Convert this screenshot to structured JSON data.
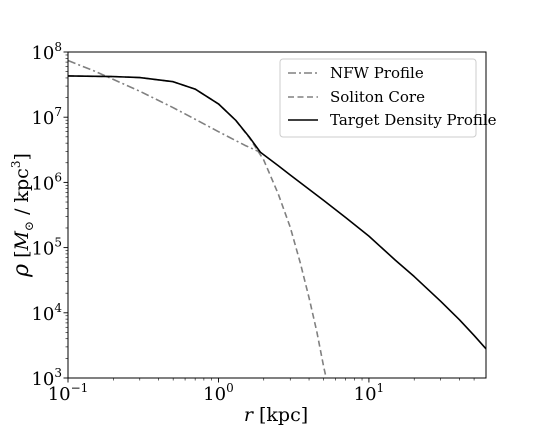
{
  "chart_data": {
    "type": "line",
    "title": "",
    "xlabel": {
      "main": "r",
      "unit": "[kpc]"
    },
    "ylabel": {
      "main": "ρ",
      "unit_open": "[",
      "unit_sym": "M",
      "unit_sub": "⊙",
      "unit_mid": " / kpc",
      "unit_sup": "3",
      "unit_close": "]"
    },
    "xscale": "log",
    "yscale": "log",
    "xlim": [
      0.1,
      60
    ],
    "ylim": [
      1000,
      100000000
    ],
    "x_ticks": [
      {
        "value": 0.1,
        "base": "10",
        "exp": "−1"
      },
      {
        "value": 1,
        "base": "10",
        "exp": "0"
      },
      {
        "value": 10,
        "base": "10",
        "exp": "1"
      }
    ],
    "y_ticks": [
      {
        "value": 1000,
        "base": "10",
        "exp": "3"
      },
      {
        "value": 10000,
        "base": "10",
        "exp": "4"
      },
      {
        "value": 100000,
        "base": "10",
        "exp": "5"
      },
      {
        "value": 1000000,
        "base": "10",
        "exp": "6"
      },
      {
        "value": 10000000,
        "base": "10",
        "exp": "7"
      },
      {
        "value": 100000000,
        "base": "10",
        "exp": "8"
      }
    ],
    "grid": false,
    "legend_position": "top-right",
    "series": [
      {
        "name": "NFW Profile",
        "color": "#808080",
        "style": "dashdot",
        "x": [
          0.1,
          0.15,
          0.2,
          0.3,
          0.5,
          0.7,
          1.0,
          1.5,
          1.9
        ],
        "y": [
          74000000,
          51000000,
          38000000,
          25000000,
          14000000,
          9300000,
          6000000,
          3700000,
          2900000
        ]
      },
      {
        "name": "Soliton Core",
        "color": "#808080",
        "style": "dashed",
        "x": [
          0.1,
          0.2,
          0.3,
          0.5,
          0.7,
          1.0,
          1.3,
          1.6,
          2.0,
          2.5,
          3.0,
          3.5,
          4.0,
          4.5,
          5.0,
          5.2
        ],
        "y": [
          43000000,
          42000000,
          40500000,
          35000000,
          27000000,
          16000000,
          9000000,
          4900000,
          2200000,
          660000,
          205000,
          58000,
          17000,
          5200,
          1500,
          1000
        ]
      },
      {
        "name": "Target Density Profile",
        "color": "#000000",
        "style": "solid",
        "x": [
          0.1,
          0.2,
          0.3,
          0.5,
          0.7,
          1.0,
          1.3,
          1.6,
          1.9,
          2.5,
          3.0,
          5.0,
          7.0,
          10.0,
          15.0,
          20.0,
          30.0,
          40.0,
          50.0,
          60.0
        ],
        "y": [
          43000000,
          42000000,
          40500000,
          35000000,
          27000000,
          16000000,
          9000000,
          5000000,
          2900000,
          1800000,
          1300000,
          530000,
          290000,
          150000,
          64000,
          36000,
          15000,
          7800,
          4500,
          2800
        ]
      }
    ]
  }
}
